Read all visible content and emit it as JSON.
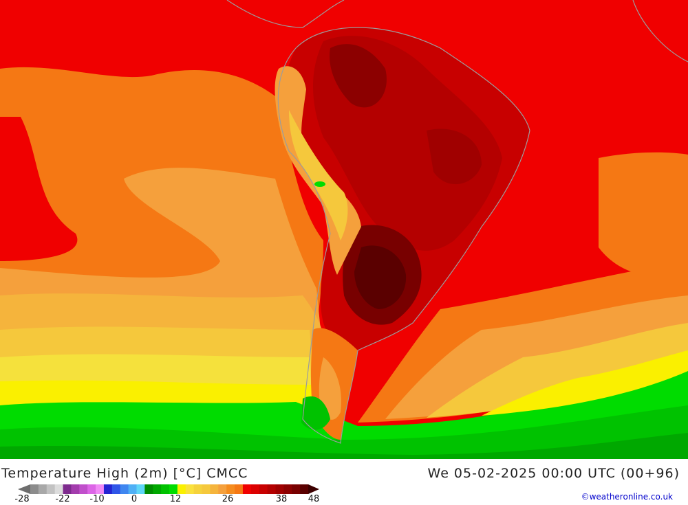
{
  "title": "Temperature High (2m) [°C] CMCC",
  "datetime": "We 05-02-2025 00:00 UTC (00+96)",
  "credit": "©weatheronline.co.uk",
  "legend": {
    "ticks": [
      "-28",
      "-22",
      "-10",
      "0",
      "12",
      "26",
      "38",
      "48"
    ],
    "colors": [
      "#8c8c8c",
      "#a8a8a8",
      "#c2c2c2",
      "#dcdcdc",
      "#7e2b8e",
      "#a33cad",
      "#c04fcb",
      "#dc65e6",
      "#f08af5",
      "#2323d2",
      "#2f55e8",
      "#3f86f0",
      "#4fb0f5",
      "#5fd6f8",
      "#008c00",
      "#00a800",
      "#00c200",
      "#00dc00",
      "#faf000",
      "#fae13c",
      "#f5d23c",
      "#f5c83c",
      "#f5b43c",
      "#f5a03c",
      "#f58c1e",
      "#f57814",
      "#f00000",
      "#dc0000",
      "#c80000",
      "#b40000",
      "#a00000",
      "#8c0000",
      "#780000",
      "#5a0000"
    ]
  }
}
